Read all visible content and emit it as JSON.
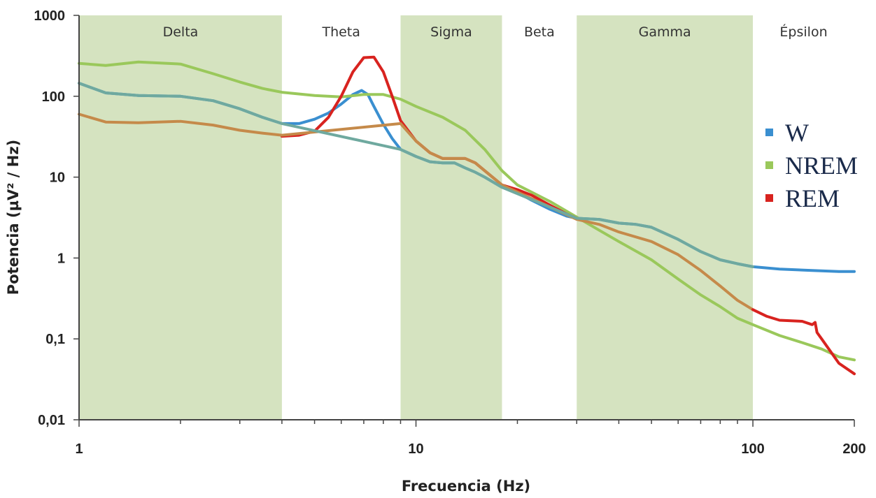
{
  "chart_data": {
    "type": "line",
    "xlabel": "Frecuencia (Hz)",
    "ylabel": "Potencia (µV² / Hz)",
    "xscale": "log",
    "yscale": "log",
    "xlim": [
      1,
      200
    ],
    "ylim": [
      0.01,
      1000
    ],
    "x_ticks": [
      {
        "value": 1,
        "label": "1"
      },
      {
        "value": 10,
        "label": "10"
      },
      {
        "value": 100,
        "label": "100"
      },
      {
        "value": 200,
        "label": "200"
      }
    ],
    "y_ticks": [
      {
        "value": 1000,
        "label": "1000"
      },
      {
        "value": 100,
        "label": "100"
      },
      {
        "value": 10,
        "label": "10"
      },
      {
        "value": 1,
        "label": "1"
      },
      {
        "value": 0.1,
        "label": "0,1"
      },
      {
        "value": 0.01,
        "label": "0,01"
      }
    ],
    "bands": [
      {
        "name": "Delta",
        "range": [
          1,
          4
        ],
        "shaded": true
      },
      {
        "name": "Theta",
        "range": [
          4,
          9
        ],
        "shaded": false
      },
      {
        "name": "Sigma",
        "range": [
          9,
          18
        ],
        "shaded": true
      },
      {
        "name": "Beta",
        "range": [
          18,
          30
        ],
        "shaded": false
      },
      {
        "name": "Gamma",
        "range": [
          30,
          100
        ],
        "shaded": true
      },
      {
        "name": "Épsilon",
        "range": [
          100,
          200
        ],
        "shaded": false
      }
    ],
    "band_color": "#d5e3c0",
    "legend_position": "right",
    "series": [
      {
        "name": "W",
        "color": "#3a8fd0",
        "points": [
          [
            1,
            145
          ],
          [
            1.2,
            110
          ],
          [
            1.5,
            102
          ],
          [
            2,
            100
          ],
          [
            2.5,
            88
          ],
          [
            3,
            70
          ],
          [
            3.5,
            55
          ],
          [
            4,
            46
          ],
          [
            4.5,
            46
          ],
          [
            5,
            52
          ],
          [
            5.5,
            62
          ],
          [
            6,
            80
          ],
          [
            6.5,
            105
          ],
          [
            6.9,
            118
          ],
          [
            7.2,
            105
          ],
          [
            7.5,
            75
          ],
          [
            8,
            45
          ],
          [
            8.5,
            30
          ],
          [
            9,
            22
          ],
          [
            10,
            18
          ],
          [
            11,
            15.5
          ],
          [
            12,
            15
          ],
          [
            13,
            15
          ],
          [
            14,
            13
          ],
          [
            15,
            11.5
          ],
          [
            16,
            10
          ],
          [
            18,
            7.5
          ],
          [
            20,
            6.5
          ],
          [
            22,
            5.2
          ],
          [
            25,
            4
          ],
          [
            28,
            3.3
          ],
          [
            30,
            3.1
          ],
          [
            35,
            3
          ],
          [
            40,
            2.7
          ],
          [
            45,
            2.6
          ],
          [
            50,
            2.4
          ],
          [
            60,
            1.7
          ],
          [
            70,
            1.2
          ],
          [
            80,
            0.95
          ],
          [
            90,
            0.85
          ],
          [
            100,
            0.78
          ],
          [
            120,
            0.73
          ],
          [
            150,
            0.7
          ],
          [
            180,
            0.68
          ],
          [
            200,
            0.68
          ]
        ]
      },
      {
        "name": "NREM",
        "color": "#9ac85b",
        "points": [
          [
            1,
            255
          ],
          [
            1.2,
            240
          ],
          [
            1.5,
            265
          ],
          [
            2,
            250
          ],
          [
            2.5,
            190
          ],
          [
            3,
            150
          ],
          [
            3.5,
            125
          ],
          [
            4,
            112
          ],
          [
            5,
            102
          ],
          [
            6,
            98
          ],
          [
            7,
            105
          ],
          [
            8,
            105
          ],
          [
            9,
            92
          ],
          [
            10,
            75
          ],
          [
            12,
            55
          ],
          [
            14,
            38
          ],
          [
            16,
            22
          ],
          [
            18,
            12
          ],
          [
            20,
            8
          ],
          [
            25,
            5
          ],
          [
            30,
            3.2
          ],
          [
            35,
            2.2
          ],
          [
            40,
            1.6
          ],
          [
            50,
            0.95
          ],
          [
            60,
            0.55
          ],
          [
            70,
            0.35
          ],
          [
            80,
            0.25
          ],
          [
            90,
            0.18
          ],
          [
            100,
            0.15
          ],
          [
            120,
            0.11
          ],
          [
            140,
            0.09
          ],
          [
            160,
            0.075
          ],
          [
            180,
            0.06
          ],
          [
            200,
            0.055
          ]
        ]
      },
      {
        "name": "REM",
        "color": "#d8231f",
        "points": [
          [
            4,
            32
          ],
          [
            4.5,
            33
          ],
          [
            5,
            37
          ],
          [
            5.5,
            55
          ],
          [
            6,
            100
          ],
          [
            6.5,
            200
          ],
          [
            7,
            300
          ],
          [
            7.5,
            305
          ],
          [
            8,
            200
          ],
          [
            8.5,
            100
          ],
          [
            9,
            50
          ],
          [
            10,
            28
          ],
          [
            11,
            20
          ],
          [
            12,
            17
          ],
          [
            13,
            17
          ],
          [
            14,
            17
          ],
          [
            15,
            15
          ],
          [
            16,
            12
          ],
          [
            18,
            8
          ],
          [
            20,
            7
          ],
          [
            22,
            6
          ],
          [
            25,
            4.5
          ],
          [
            28,
            3.5
          ],
          [
            30,
            3.1
          ]
        ]
      },
      {
        "name": "",
        "color": "#c58a4a",
        "points": [
          [
            1,
            60
          ],
          [
            1.2,
            48
          ],
          [
            1.5,
            47
          ],
          [
            2,
            49
          ],
          [
            2.5,
            44
          ],
          [
            3,
            38
          ],
          [
            3.5,
            35
          ],
          [
            4,
            33
          ],
          [
            9,
            46
          ],
          [
            10,
            28
          ],
          [
            11,
            20
          ],
          [
            12,
            17
          ],
          [
            13,
            17
          ],
          [
            14,
            17
          ],
          [
            15,
            15
          ],
          [
            16,
            12
          ],
          [
            18,
            8
          ],
          [
            30,
            3
          ],
          [
            35,
            2.6
          ],
          [
            40,
            2.1
          ],
          [
            50,
            1.6
          ],
          [
            60,
            1.1
          ],
          [
            70,
            0.7
          ],
          [
            80,
            0.45
          ],
          [
            90,
            0.3
          ],
          [
            100,
            0.23
          ]
        ]
      },
      {
        "name": "",
        "color": "#d8231f",
        "points": [
          [
            100,
            0.23
          ],
          [
            110,
            0.19
          ],
          [
            120,
            0.17
          ],
          [
            140,
            0.165
          ],
          [
            150,
            0.15
          ],
          [
            153,
            0.16
          ],
          [
            155,
            0.12
          ],
          [
            160,
            0.1
          ],
          [
            180,
            0.05
          ],
          [
            200,
            0.037
          ]
        ]
      },
      {
        "name": "",
        "color": "#6fa99f",
        "points": [
          [
            1,
            145
          ],
          [
            1.2,
            110
          ],
          [
            1.5,
            102
          ],
          [
            2,
            100
          ],
          [
            2.5,
            88
          ],
          [
            3,
            70
          ],
          [
            3.5,
            55
          ],
          [
            4,
            46
          ],
          [
            9,
            22
          ],
          [
            10,
            18
          ],
          [
            11,
            15.5
          ],
          [
            12,
            15
          ],
          [
            13,
            15
          ],
          [
            14,
            13
          ],
          [
            15,
            11.5
          ],
          [
            16,
            10
          ],
          [
            18,
            7.5
          ],
          [
            30,
            3.1
          ],
          [
            35,
            3
          ],
          [
            40,
            2.7
          ],
          [
            45,
            2.6
          ],
          [
            50,
            2.4
          ],
          [
            60,
            1.7
          ],
          [
            70,
            1.2
          ],
          [
            80,
            0.95
          ],
          [
            90,
            0.85
          ],
          [
            100,
            0.78
          ]
        ]
      }
    ]
  }
}
